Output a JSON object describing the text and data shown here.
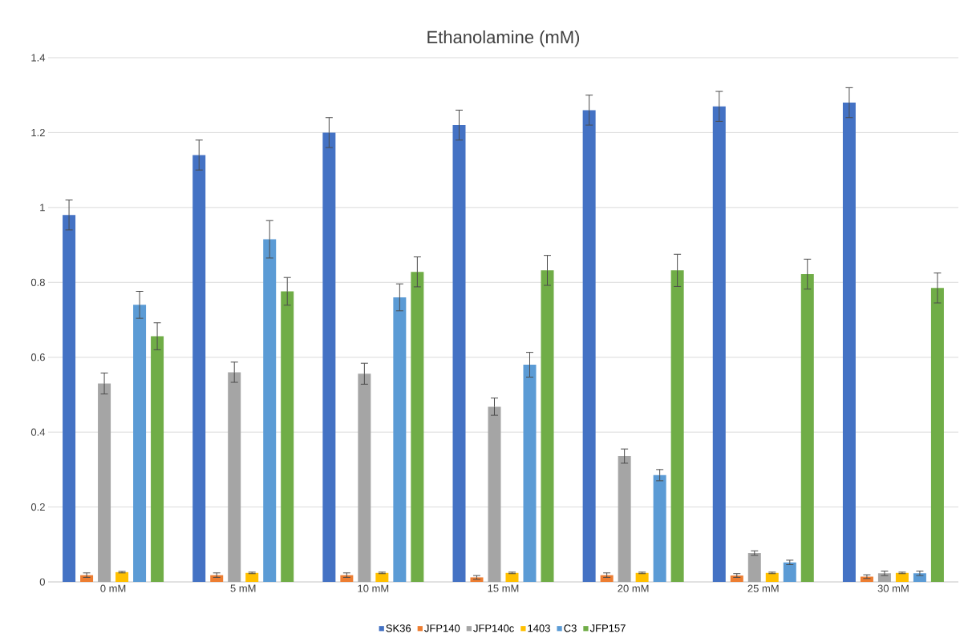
{
  "chart_data": {
    "type": "bar",
    "title": "Ethanolamine (mM)",
    "categories": [
      "0 mM",
      "5 mM",
      "10 mM",
      "15 mM",
      "20 mM",
      "25 mM",
      "30 mM"
    ],
    "series": [
      {
        "name": "SK36",
        "color": "#4472c4",
        "values": [
          0.98,
          1.14,
          1.2,
          1.22,
          1.26,
          1.27,
          1.28
        ],
        "errors": [
          0.04,
          0.04,
          0.04,
          0.04,
          0.04,
          0.04,
          0.04
        ]
      },
      {
        "name": "JFP140",
        "color": "#ed7d31",
        "values": [
          0.018,
          0.018,
          0.018,
          0.012,
          0.018,
          0.017,
          0.014
        ],
        "errors": [
          0.006,
          0.006,
          0.006,
          0.005,
          0.006,
          0.005,
          0.005
        ]
      },
      {
        "name": "JFP140c",
        "color": "#a5a5a5",
        "values": [
          0.53,
          0.56,
          0.556,
          0.468,
          0.336,
          0.077,
          0.023
        ],
        "errors": [
          0.028,
          0.027,
          0.028,
          0.023,
          0.019,
          0.006,
          0.006
        ]
      },
      {
        "name": "1403",
        "color": "#ffc000",
        "values": [
          0.026,
          0.024,
          0.024,
          0.024,
          0.024,
          0.024,
          0.024
        ],
        "errors": [
          0.002,
          0.002,
          0.002,
          0.002,
          0.002,
          0.002,
          0.002
        ]
      },
      {
        "name": "C3",
        "color": "#5b9bd5",
        "values": [
          0.74,
          0.915,
          0.76,
          0.58,
          0.285,
          0.052,
          0.023
        ],
        "errors": [
          0.036,
          0.05,
          0.036,
          0.033,
          0.015,
          0.006,
          0.006
        ]
      },
      {
        "name": "JFP157",
        "color": "#70ad47",
        "values": [
          0.656,
          0.776,
          0.828,
          0.832,
          0.832,
          0.822,
          0.785
        ],
        "errors": [
          0.036,
          0.037,
          0.04,
          0.04,
          0.043,
          0.04,
          0.04
        ]
      }
    ],
    "ylim": [
      0,
      1.4
    ],
    "yticks": [
      0,
      0.2,
      0.4,
      0.6,
      0.8,
      1,
      1.2,
      1.4
    ],
    "grid": "y",
    "legend": "bottom"
  }
}
